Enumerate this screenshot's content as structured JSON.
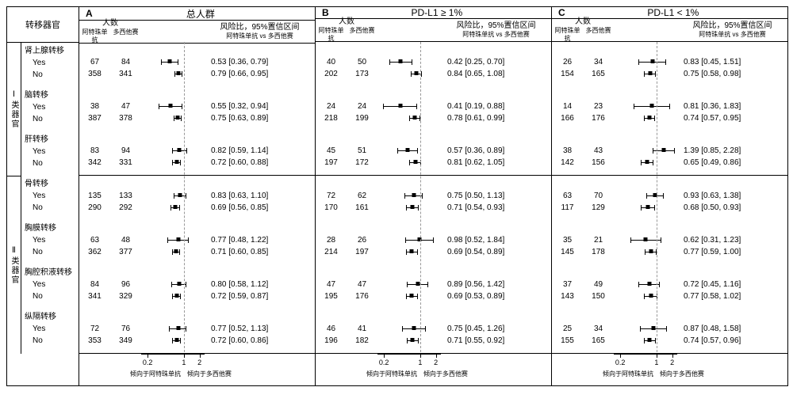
{
  "label_metastasis_organ": "转移器官",
  "category_labels": [
    "Ⅰ类器官",
    "Ⅱ类器官"
  ],
  "header": {
    "count_label": "人数",
    "arm1_short": "阿特珠单抗",
    "arm2_short": "多西他赛",
    "hr_label": "风险比，95%置信区间",
    "hr_sub": "阿特珠单抗 vs 多西他赛"
  },
  "axis": {
    "ticks": [
      0.2,
      1,
      2
    ],
    "left_label": "倾向于阿特珠单抗",
    "right_label": "倾向于多西他赛",
    "log_min": 0.15,
    "log_max": 2.5
  },
  "panels": [
    {
      "letter": "A",
      "title": "总人群"
    },
    {
      "letter": "B",
      "title": "PD-L1 ≥ 1%"
    },
    {
      "letter": "C",
      "title": "PD-L1 < 1%"
    }
  ],
  "groups": [
    {
      "name": "肾上腺转移",
      "cat": 0,
      "rows": [
        {
          "label": "Yes",
          "p": [
            {
              "n1": 67,
              "n2": 84,
              "hr": 0.53,
              "lo": 0.36,
              "hi": 0.79
            },
            {
              "n1": 40,
              "n2": 50,
              "hr": 0.42,
              "lo": 0.25,
              "hi": 0.7
            },
            {
              "n1": 26,
              "n2": 34,
              "hr": 0.83,
              "lo": 0.45,
              "hi": 1.51
            }
          ]
        },
        {
          "label": "No",
          "p": [
            {
              "n1": 358,
              "n2": 341,
              "hr": 0.79,
              "lo": 0.66,
              "hi": 0.95
            },
            {
              "n1": 202,
              "n2": 173,
              "hr": 0.84,
              "lo": 0.65,
              "hi": 1.08
            },
            {
              "n1": 154,
              "n2": 165,
              "hr": 0.75,
              "lo": 0.58,
              "hi": 0.98
            }
          ]
        }
      ]
    },
    {
      "name": "脑转移",
      "cat": 0,
      "rows": [
        {
          "label": "Yes",
          "p": [
            {
              "n1": 38,
              "n2": 47,
              "hr": 0.55,
              "lo": 0.32,
              "hi": 0.94
            },
            {
              "n1": 24,
              "n2": 24,
              "hr": 0.41,
              "lo": 0.19,
              "hi": 0.88
            },
            {
              "n1": 14,
              "n2": 23,
              "hr": 0.81,
              "lo": 0.36,
              "hi": 1.83
            }
          ]
        },
        {
          "label": "No",
          "p": [
            {
              "n1": 387,
              "n2": 378,
              "hr": 0.75,
              "lo": 0.63,
              "hi": 0.89
            },
            {
              "n1": 218,
              "n2": 199,
              "hr": 0.78,
              "lo": 0.61,
              "hi": 0.99
            },
            {
              "n1": 166,
              "n2": 176,
              "hr": 0.74,
              "lo": 0.57,
              "hi": 0.95
            }
          ]
        }
      ]
    },
    {
      "name": "肝转移",
      "cat": 0,
      "rows": [
        {
          "label": "Yes",
          "p": [
            {
              "n1": 83,
              "n2": 94,
              "hr": 0.82,
              "lo": 0.59,
              "hi": 1.14
            },
            {
              "n1": 45,
              "n2": 51,
              "hr": 0.57,
              "lo": 0.36,
              "hi": 0.89
            },
            {
              "n1": 38,
              "n2": 43,
              "hr": 1.39,
              "lo": 0.85,
              "hi": 2.28
            }
          ]
        },
        {
          "label": "No",
          "p": [
            {
              "n1": 342,
              "n2": 331,
              "hr": 0.72,
              "lo": 0.6,
              "hi": 0.88
            },
            {
              "n1": 197,
              "n2": 172,
              "hr": 0.81,
              "lo": 0.62,
              "hi": 1.05
            },
            {
              "n1": 142,
              "n2": 156,
              "hr": 0.65,
              "lo": 0.49,
              "hi": 0.86
            }
          ]
        }
      ]
    },
    {
      "name": "骨转移",
      "cat": 1,
      "rows": [
        {
          "label": "Yes",
          "p": [
            {
              "n1": 135,
              "n2": 133,
              "hr": 0.83,
              "lo": 0.63,
              "hi": 1.1
            },
            {
              "n1": 72,
              "n2": 62,
              "hr": 0.75,
              "lo": 0.5,
              "hi": 1.13
            },
            {
              "n1": 63,
              "n2": 70,
              "hr": 0.93,
              "lo": 0.63,
              "hi": 1.38
            }
          ]
        },
        {
          "label": "No",
          "p": [
            {
              "n1": 290,
              "n2": 292,
              "hr": 0.69,
              "lo": 0.56,
              "hi": 0.85
            },
            {
              "n1": 170,
              "n2": 161,
              "hr": 0.71,
              "lo": 0.54,
              "hi": 0.93
            },
            {
              "n1": 117,
              "n2": 129,
              "hr": 0.68,
              "lo": 0.5,
              "hi": 0.93
            }
          ]
        }
      ]
    },
    {
      "name": "胸膜转移",
      "cat": 1,
      "rows": [
        {
          "label": "Yes",
          "p": [
            {
              "n1": 63,
              "n2": 48,
              "hr": 0.77,
              "lo": 0.48,
              "hi": 1.22
            },
            {
              "n1": 28,
              "n2": 26,
              "hr": 0.98,
              "lo": 0.52,
              "hi": 1.84
            },
            {
              "n1": 35,
              "n2": 21,
              "hr": 0.62,
              "lo": 0.31,
              "hi": 1.23
            }
          ]
        },
        {
          "label": "No",
          "p": [
            {
              "n1": 362,
              "n2": 377,
              "hr": 0.71,
              "lo": 0.6,
              "hi": 0.85
            },
            {
              "n1": 214,
              "n2": 197,
              "hr": 0.69,
              "lo": 0.54,
              "hi": 0.89
            },
            {
              "n1": 145,
              "n2": 178,
              "hr": 0.77,
              "lo": 0.59,
              "hi": 1.0
            }
          ]
        }
      ]
    },
    {
      "name": "胸腔积液转移",
      "cat": 1,
      "rows": [
        {
          "label": "Yes",
          "p": [
            {
              "n1": 84,
              "n2": 96,
              "hr": 0.8,
              "lo": 0.58,
              "hi": 1.12
            },
            {
              "n1": 47,
              "n2": 47,
              "hr": 0.89,
              "lo": 0.56,
              "hi": 1.42
            },
            {
              "n1": 37,
              "n2": 49,
              "hr": 0.72,
              "lo": 0.45,
              "hi": 1.16
            }
          ]
        },
        {
          "label": "No",
          "p": [
            {
              "n1": 341,
              "n2": 329,
              "hr": 0.72,
              "lo": 0.59,
              "hi": 0.87
            },
            {
              "n1": 195,
              "n2": 176,
              "hr": 0.69,
              "lo": 0.53,
              "hi": 0.89
            },
            {
              "n1": 143,
              "n2": 150,
              "hr": 0.77,
              "lo": 0.58,
              "hi": 1.02
            }
          ]
        }
      ]
    },
    {
      "name": "纵隔转移",
      "cat": 1,
      "rows": [
        {
          "label": "Yes",
          "p": [
            {
              "n1": 72,
              "n2": 76,
              "hr": 0.77,
              "lo": 0.52,
              "hi": 1.13
            },
            {
              "n1": 46,
              "n2": 41,
              "hr": 0.75,
              "lo": 0.45,
              "hi": 1.26
            },
            {
              "n1": 25,
              "n2": 34,
              "hr": 0.87,
              "lo": 0.48,
              "hi": 1.58
            }
          ]
        },
        {
          "label": "No",
          "p": [
            {
              "n1": 353,
              "n2": 349,
              "hr": 0.72,
              "lo": 0.6,
              "hi": 0.86
            },
            {
              "n1": 196,
              "n2": 182,
              "hr": 0.71,
              "lo": 0.55,
              "hi": 0.92
            },
            {
              "n1": 155,
              "n2": 165,
              "hr": 0.74,
              "lo": 0.57,
              "hi": 0.96
            }
          ]
        }
      ]
    }
  ]
}
